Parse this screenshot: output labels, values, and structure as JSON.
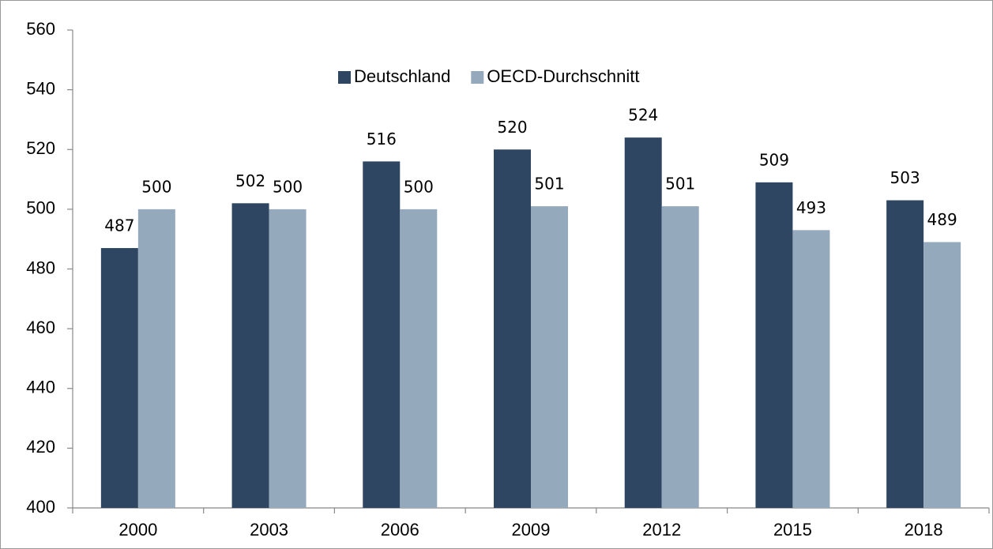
{
  "chart_data": {
    "type": "bar",
    "categories": [
      "2000",
      "2003",
      "2006",
      "2009",
      "2012",
      "2015",
      "2018"
    ],
    "series": [
      {
        "name": "Deutschland",
        "color": "#2e4661",
        "values": [
          487,
          502,
          516,
          520,
          524,
          509,
          503
        ]
      },
      {
        "name": "OECD-Durchschnitt",
        "color": "#95a9bc",
        "values": [
          500,
          500,
          500,
          501,
          501,
          493,
          489
        ]
      }
    ],
    "ylim": [
      400,
      560
    ],
    "yticks": [
      400,
      420,
      440,
      460,
      480,
      500,
      520,
      540,
      560
    ],
    "grid": false,
    "legend": "top"
  }
}
